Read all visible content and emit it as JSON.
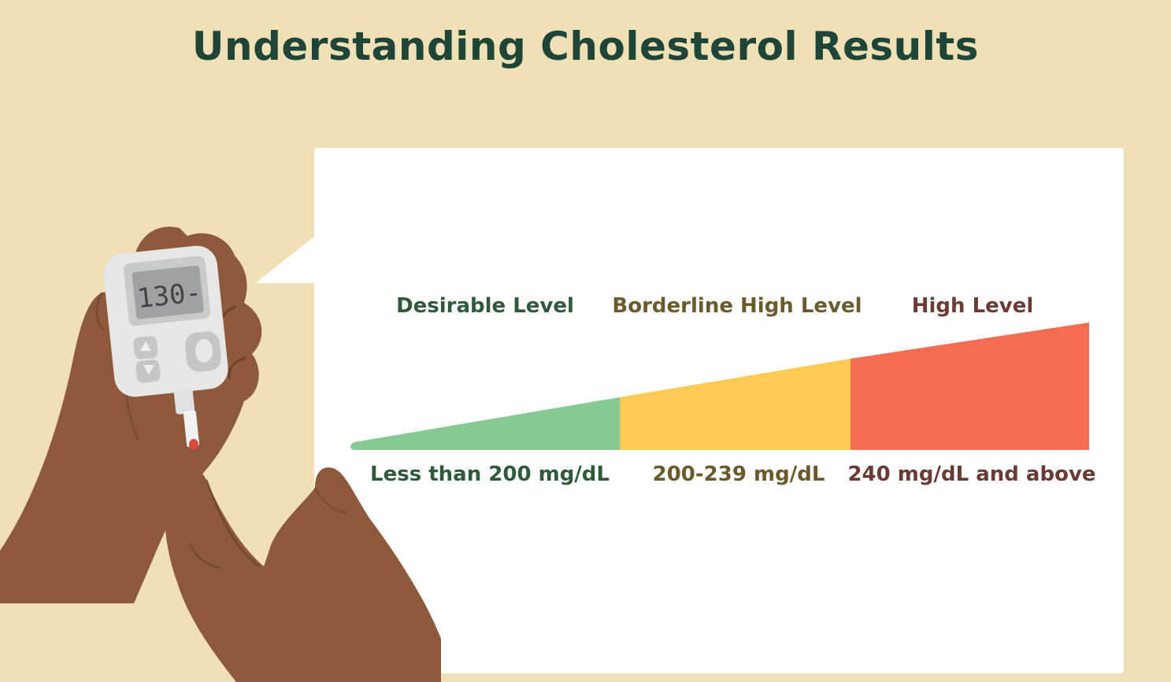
{
  "title": "Understanding Cholesterol Results",
  "meter": {
    "display": "130-",
    "icons": [
      "up-arrow-icon",
      "down-arrow-icon"
    ]
  },
  "levels": [
    {
      "label": "Desirable Level",
      "range": "Less than 200 mg/dL",
      "color": "#86c993",
      "text_color": "#2f5a3a"
    },
    {
      "label": "Borderline High Level",
      "range": "200-239 mg/dL",
      "color": "#fdca53",
      "text_color": "#6b5a2c"
    },
    {
      "label": "High Level",
      "range": "240 mg/dL and above",
      "color": "#f26d52",
      "text_color": "#6a3a34"
    }
  ],
  "colors": {
    "background": "#efe1b5",
    "title": "#1f4538",
    "panel": "#ffffff",
    "skin": "#8e5a3b"
  }
}
